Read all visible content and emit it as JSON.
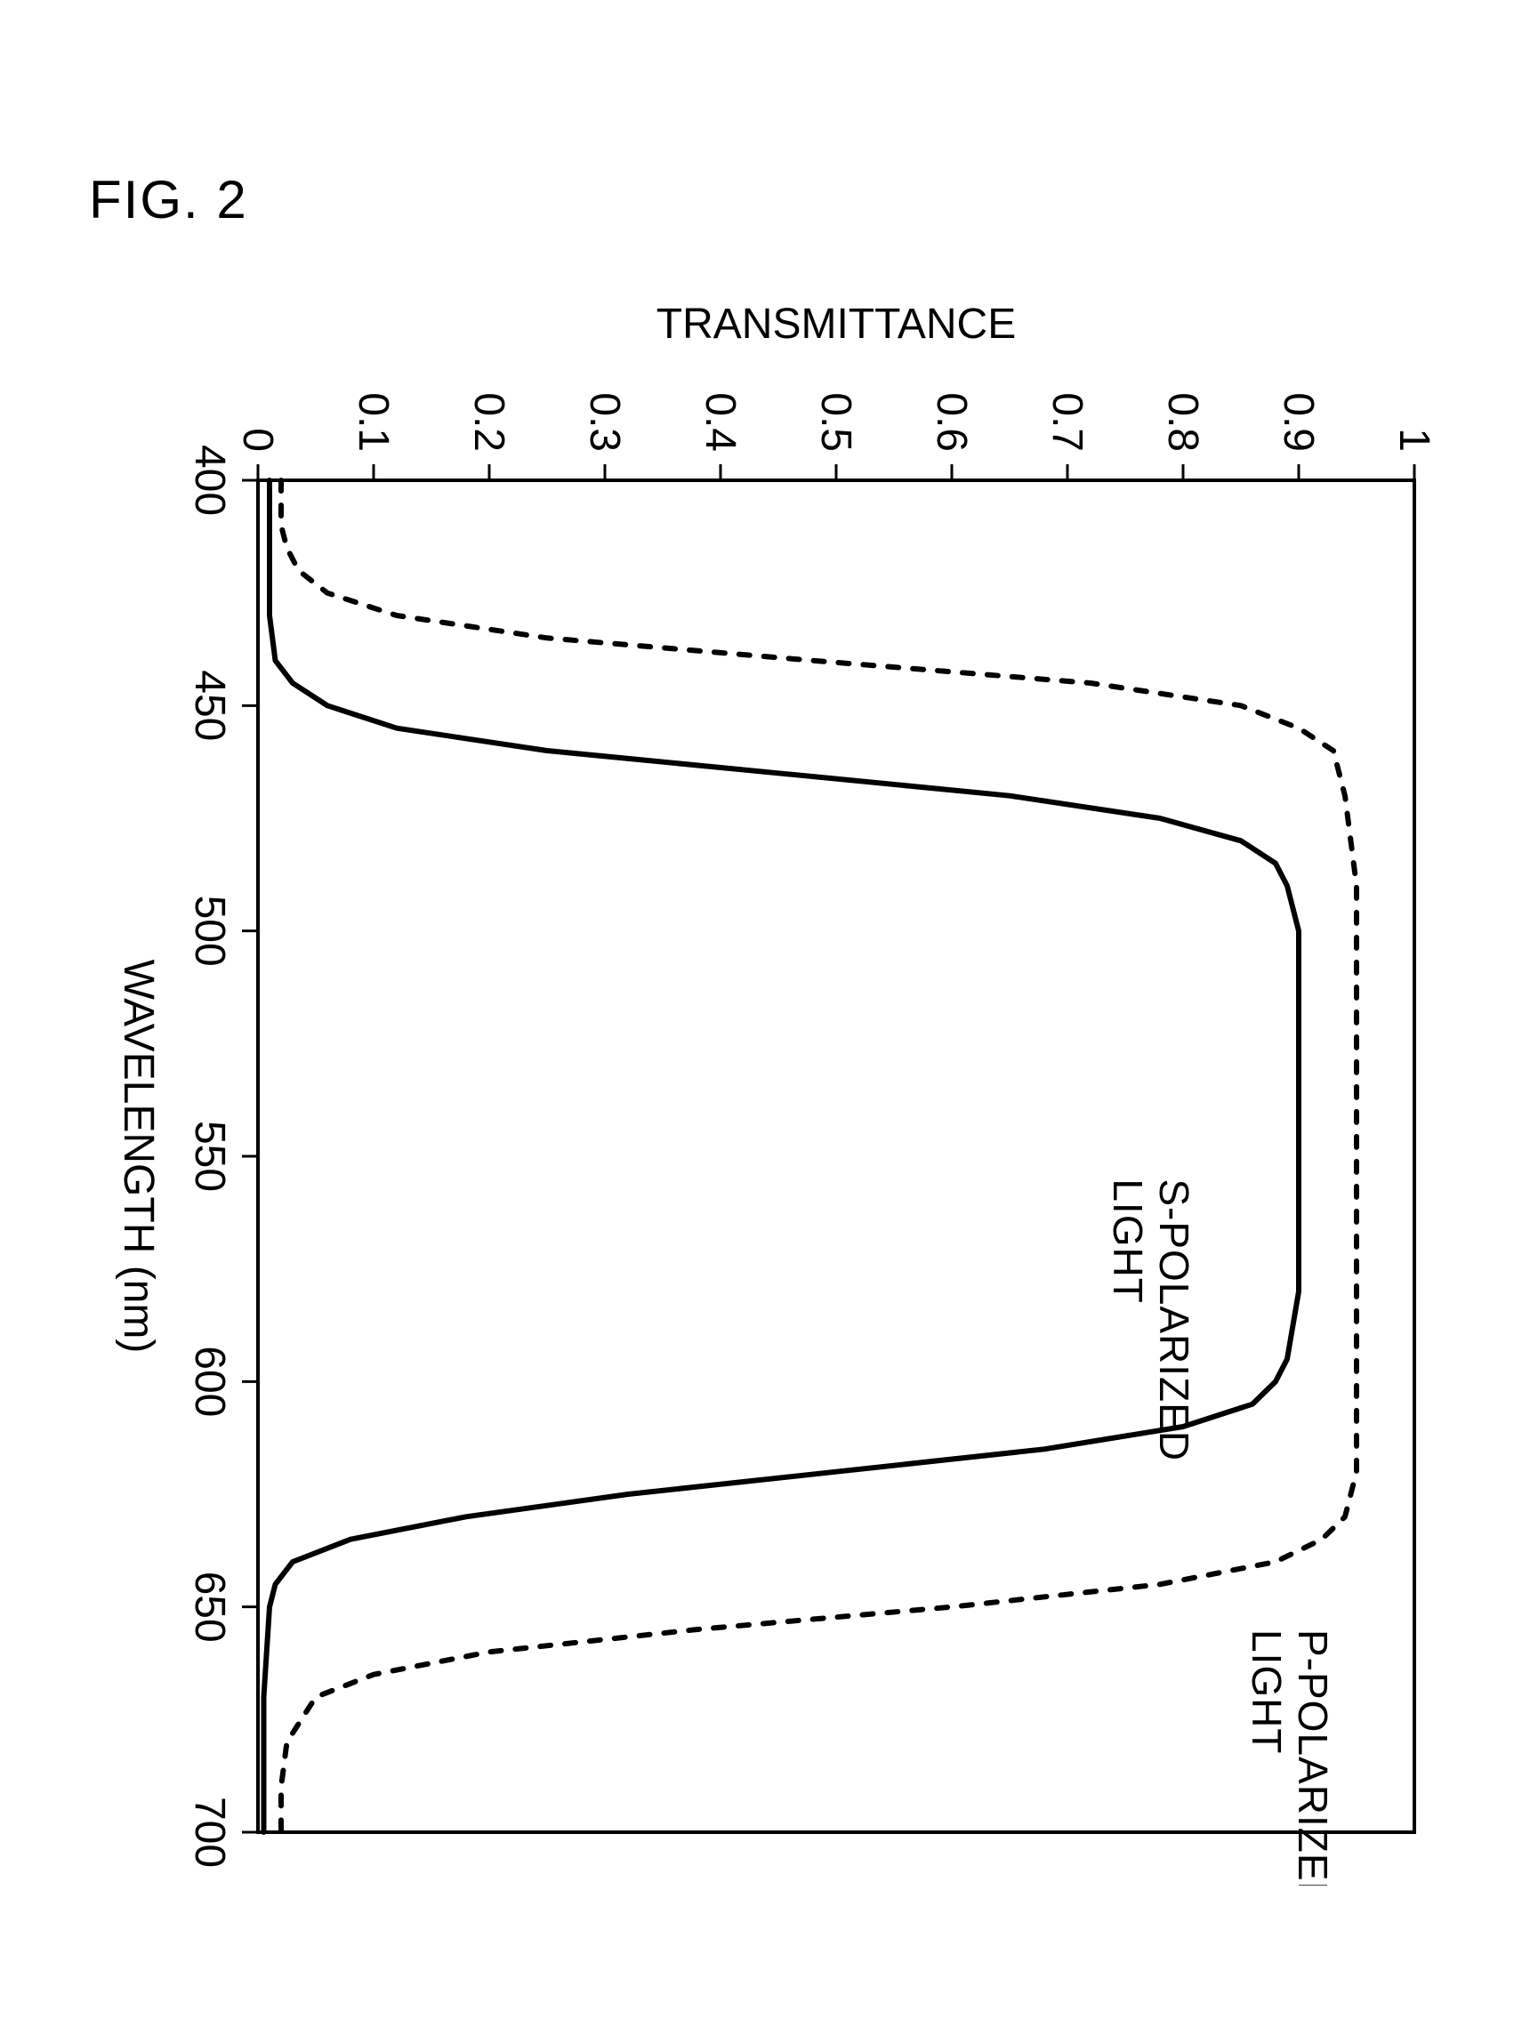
{
  "figure_label": "FIG. 2",
  "chart": {
    "type": "line",
    "rotation_deg": 90,
    "background_color": "#ffffff",
    "plot_border_color": "#000000",
    "plot_border_width": 4,
    "x_axis": {
      "label": "WAVELENGTH (nm)",
      "min": 400,
      "max": 700,
      "tick_step": 50,
      "ticks": [
        400,
        450,
        500,
        550,
        600,
        650,
        700
      ],
      "label_fontsize": 48,
      "tick_fontsize": 48
    },
    "y_axis": {
      "label": "TRANSMITTANCE",
      "min": 0,
      "max": 1,
      "tick_step": 0.1,
      "ticks": [
        0,
        0.1,
        0.2,
        0.3,
        0.4,
        0.5,
        0.6,
        0.7,
        0.8,
        0.9,
        1
      ],
      "label_fontsize": 48,
      "tick_fontsize": 48
    },
    "series": [
      {
        "name": "S-POLARIZED LIGHT",
        "color": "#000000",
        "line_width": 6,
        "dash": "none",
        "label_x": 555,
        "label_y": 0.78,
        "points": [
          [
            400,
            0.01
          ],
          [
            420,
            0.01
          ],
          [
            430,
            0.01
          ],
          [
            440,
            0.015
          ],
          [
            445,
            0.03
          ],
          [
            450,
            0.06
          ],
          [
            455,
            0.12
          ],
          [
            460,
            0.25
          ],
          [
            465,
            0.45
          ],
          [
            470,
            0.65
          ],
          [
            475,
            0.78
          ],
          [
            480,
            0.85
          ],
          [
            485,
            0.88
          ],
          [
            490,
            0.89
          ],
          [
            500,
            0.9
          ],
          [
            520,
            0.9
          ],
          [
            540,
            0.9
          ],
          [
            560,
            0.9
          ],
          [
            580,
            0.9
          ],
          [
            595,
            0.89
          ],
          [
            600,
            0.88
          ],
          [
            605,
            0.86
          ],
          [
            610,
            0.8
          ],
          [
            615,
            0.68
          ],
          [
            620,
            0.5
          ],
          [
            625,
            0.32
          ],
          [
            630,
            0.18
          ],
          [
            635,
            0.08
          ],
          [
            640,
            0.03
          ],
          [
            645,
            0.015
          ],
          [
            650,
            0.01
          ],
          [
            670,
            0.005
          ],
          [
            690,
            0.005
          ],
          [
            700,
            0.005
          ]
        ]
      },
      {
        "name": "P-POLARIZED LIGHT",
        "color": "#000000",
        "line_width": 6,
        "dash": "12 16",
        "label_x": 655,
        "label_y": 0.9,
        "points": [
          [
            400,
            0.02
          ],
          [
            405,
            0.02
          ],
          [
            410,
            0.02
          ],
          [
            415,
            0.025
          ],
          [
            420,
            0.035
          ],
          [
            425,
            0.06
          ],
          [
            430,
            0.12
          ],
          [
            435,
            0.25
          ],
          [
            440,
            0.48
          ],
          [
            445,
            0.72
          ],
          [
            450,
            0.85
          ],
          [
            455,
            0.9
          ],
          [
            460,
            0.93
          ],
          [
            470,
            0.94
          ],
          [
            490,
            0.95
          ],
          [
            520,
            0.95
          ],
          [
            560,
            0.95
          ],
          [
            600,
            0.95
          ],
          [
            620,
            0.95
          ],
          [
            630,
            0.94
          ],
          [
            635,
            0.92
          ],
          [
            640,
            0.88
          ],
          [
            645,
            0.78
          ],
          [
            650,
            0.6
          ],
          [
            655,
            0.38
          ],
          [
            660,
            0.2
          ],
          [
            665,
            0.1
          ],
          [
            670,
            0.05
          ],
          [
            680,
            0.025
          ],
          [
            690,
            0.02
          ],
          [
            700,
            0.02
          ]
        ]
      }
    ]
  }
}
